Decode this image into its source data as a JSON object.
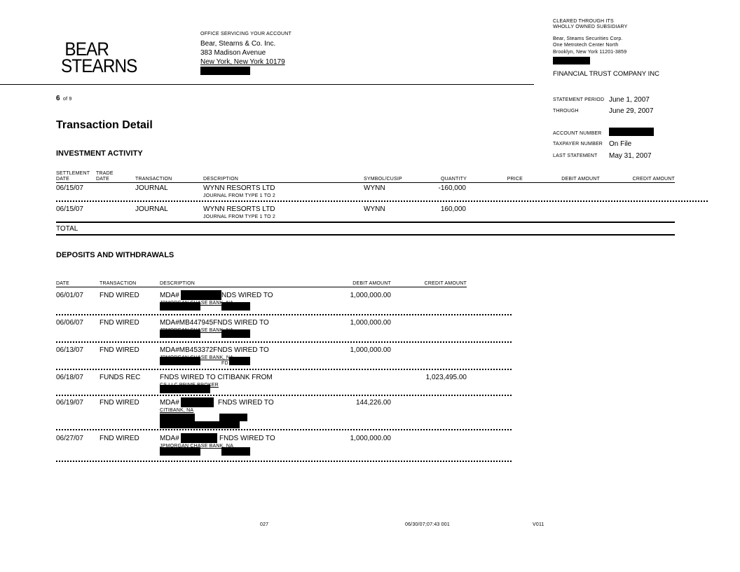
{
  "logo": {
    "line1": "BEAR",
    "line2": "STEARNS"
  },
  "office": {
    "heading": "OFFICE SERVICING YOUR ACCOUNT",
    "name": "Bear, Stearns & Co. Inc.",
    "street": "383 Madison Avenue",
    "city": "New York, New York  10179"
  },
  "clearing": {
    "line1": "CLEARED THROUGH ITS",
    "line2": "WHOLLY OWNED SUBSIDIARY",
    "name": "Bear, Steams Securities Corp.",
    "street": "One Metrotech Center North",
    "city": "Brooklyn, New York 11201-3859",
    "client": "FINANCIAL TRUST COMPANY INC"
  },
  "page": {
    "number": "6",
    "of": "of 9"
  },
  "statement": {
    "period_label": "STATEMENT PERIOD",
    "period": "June 1, 2007",
    "through_label": "THROUGH",
    "through": "June 29, 2007",
    "account_label": "ACCOUNT NUMBER",
    "taxpayer_label": "TAXPAYER NUMBER",
    "taxpayer": "On File",
    "last_label": "LAST STATEMENT",
    "last": "May 31, 2007"
  },
  "title": "Transaction Detail",
  "investment": {
    "heading": "INVESTMENT ACTIVITY",
    "headers": {
      "settle1": "SETTLEMENT",
      "settle2": "DATE",
      "trade1": "TRADE",
      "trade2": "DATE",
      "transaction": "TRANSACTION",
      "description": "DESCRIPTION",
      "symbol": "SYMBOL/CUSIP",
      "quantity": "QUANTITY",
      "price": "PRICE",
      "debit": "DEBIT AMOUNT",
      "credit": "CREDIT AMOUNT"
    },
    "rows": [
      {
        "date": "06/15/07",
        "transaction": "JOURNAL",
        "desc1": "WYNN RESORTS LTD",
        "desc2": "JOURNAL  FROM  TYPE  1  TO  2",
        "symbol": "WYNN",
        "quantity": "-160,000"
      },
      {
        "date": "06/15/07",
        "transaction": "JOURNAL",
        "desc1": "WYNN RESORTS LTD",
        "desc2": "JOURNAL  FROM  TYPE  1  TO  2",
        "symbol": "WYNN",
        "quantity": "160,000"
      }
    ],
    "total": "TOTAL"
  },
  "deposits": {
    "heading": "DEPOSITS AND WITHDRAWALS",
    "headers": {
      "date": "DATE",
      "transaction": "TRANSACTION",
      "description": "DESCRIPTION",
      "debit": "DEBIT AMOUNT",
      "credit": "CREDIT AMOUNT"
    },
    "rows": [
      {
        "date": "06/01/07",
        "transaction": "FND WIRED",
        "d1a": "MDA#",
        "d1b": "NDS WIRED  TO",
        "d2": "JPMORGAN  CHASE  BANK,  NA",
        "debit": "1,000,000.00",
        "credit": ""
      },
      {
        "date": "06/06/07",
        "transaction": "FND WIRED",
        "d1a": "MDA#MB447945FNDS WIRED  TO",
        "d1b": "",
        "d2": "JPMORGAN  CHASE  BANK,  NA",
        "debit": "1,000,000.00",
        "credit": ""
      },
      {
        "date": "06/13/07",
        "transaction": "FND WIRED",
        "d1a": "MDA#MB453372FNDS WIRED  TO",
        "d1b": "",
        "d2": "JPMORGAN  CHASE  BANK,  NA",
        "d3": "FD",
        "debit": "1,000,000.00",
        "credit": ""
      },
      {
        "date": "06/18/07",
        "transaction": "FUNDS REC",
        "d1a": "FNDS WIRED  TO CITIBANK  FROM",
        "d1b": "",
        "d2": "CS  LLC  PRIME  BROKER",
        "debit": "",
        "credit": "1,023,495.00"
      },
      {
        "date": "06/19/07",
        "transaction": "FND WIRED",
        "d1a": "MDA#",
        "d1b": "FNDS WIRED  TO",
        "d2": "CITIBANK,  NA",
        "debit": "144,226.00",
        "credit": ""
      },
      {
        "date": "06/27/07",
        "transaction": "FND WIRED",
        "d1a": "MDA#",
        "d1b": "FNDS WIRED  TO",
        "d2": "JPMORGAN  CHASE  BANK,  NA",
        "debit": "1,000,000.00",
        "credit": ""
      }
    ]
  },
  "footer": {
    "code1": "027",
    "timestamp": "06/30/07;07:43  001",
    "code2": "V011"
  }
}
